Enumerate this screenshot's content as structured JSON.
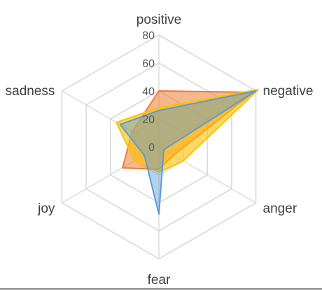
{
  "chart_data": {
    "type": "radar",
    "categories": [
      "positive",
      "negative",
      "anger",
      "fear",
      "joy",
      "sadness"
    ],
    "rlim": [
      0,
      80
    ],
    "ticks": [
      "0",
      "20",
      "40",
      "60",
      "80"
    ],
    "tick_values": [
      0,
      20,
      40,
      60,
      80
    ],
    "grid": true,
    "series": [
      {
        "values": [
          40,
          78,
          12,
          16,
          30,
          22
        ],
        "color": "#ED7D31",
        "fill_opacity": 0.55
      },
      {
        "values": [
          28,
          82,
          20,
          18,
          20,
          35
        ],
        "color": "#FFC000",
        "fill_opacity": 0.6
      },
      {
        "values": [
          26,
          80,
          4,
          48,
          12,
          32
        ],
        "color": "#5B9BD5",
        "fill_opacity": 0.45
      }
    ]
  }
}
